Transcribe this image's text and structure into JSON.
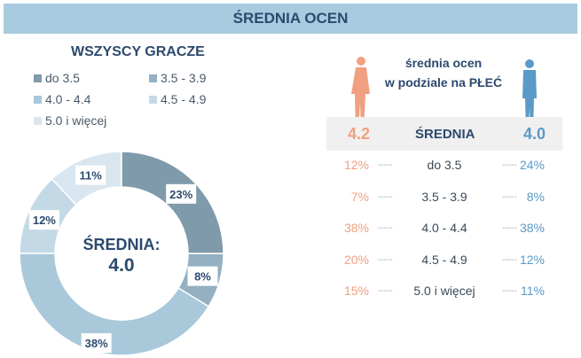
{
  "header": {
    "title": "ŚREDNIA OCEN"
  },
  "left": {
    "title": "WSZYSCY GRACZE"
  },
  "chart_data": {
    "type": "pie",
    "title": "WSZYSCY GRACZE",
    "categories": [
      "do 3.5",
      "3.5 - 3.9",
      "4.0 - 4.4",
      "4.5 - 4.9",
      "5.0 i więcej"
    ],
    "values": [
      23,
      8,
      38,
      12,
      11
    ],
    "labels": [
      "23%",
      "8%",
      "38%",
      "12%",
      "11%"
    ],
    "colors": [
      "#7f9aaa",
      "#94b0c2",
      "#a9c8da",
      "#c4d9e6",
      "#dae6ef"
    ],
    "center_label": "ŚREDNIA:",
    "center_value": "4.0",
    "legend": "top"
  },
  "gender": {
    "title_line1": "średnia ocen",
    "title_line2": "w podziale na PŁEĆ",
    "female_avg": "4.2",
    "avg_label": "ŚREDNIA",
    "male_avg": "4.0",
    "female_color": "#f0a080",
    "male_color": "#5a9ac8",
    "rows": [
      {
        "f": "12%",
        "label": "do 3.5",
        "m": "24%"
      },
      {
        "f": "7%",
        "label": "3.5 - 3.9",
        "m": "8%"
      },
      {
        "f": "38%",
        "label": "4.0 - 4.4",
        "m": "38%"
      },
      {
        "f": "20%",
        "label": "4.5 - 4.9",
        "m": "12%"
      },
      {
        "f": "15%",
        "label": "5.0 i więcej",
        "m": "11%"
      }
    ],
    "dash": "-----"
  }
}
